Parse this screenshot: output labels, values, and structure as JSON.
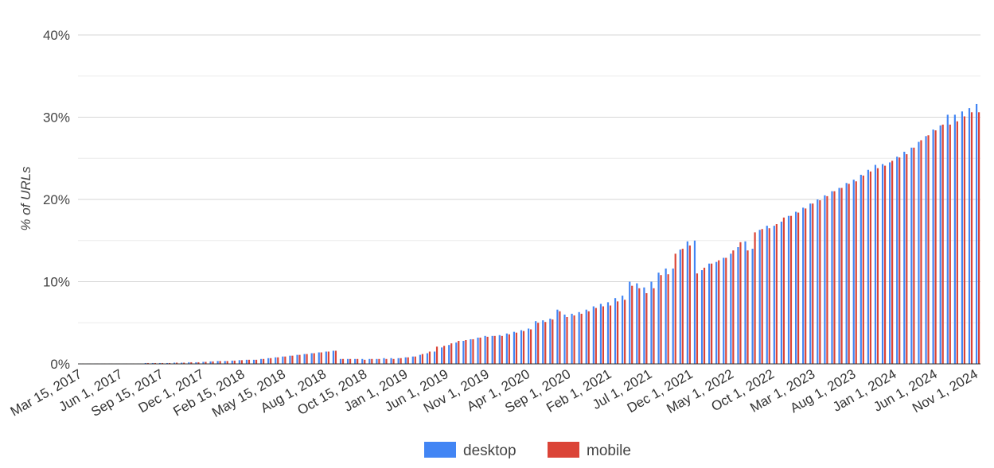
{
  "chart_data": {
    "type": "bar",
    "title": "",
    "xlabel": "",
    "ylabel": "% of URLs",
    "ylim": [
      0,
      40
    ],
    "y_ticks": [
      "0%",
      "10%",
      "20%",
      "30%",
      "40%"
    ],
    "grid": true,
    "legend_position": "bottom",
    "x_tick_labels": [
      "Mar 15, 2017",
      "Jun 1, 2017",
      "Sep 15, 2017",
      "Dec 1, 2017",
      "Feb 15, 2018",
      "May 15, 2018",
      "Aug 1, 2018",
      "Oct 15, 2018",
      "Jan 1, 2019",
      "Jun 1, 2019",
      "Nov 1, 2019",
      "Apr 1, 2020",
      "Sep 1, 2020",
      "Feb 1, 2021",
      "Jul 1, 2021",
      "Dec 1, 2021",
      "May 1, 2022",
      "Oct 1, 2022",
      "Mar 1, 2023",
      "Aug 1, 2023",
      "Jan 1, 2024",
      "Jun 1, 2024",
      "Nov 1, 2024"
    ],
    "series": [
      {
        "name": "desktop",
        "color": "#4285f4",
        "values": [
          0.05,
          0.05,
          0.05,
          0.05,
          0.05,
          0.05,
          0.05,
          0.05,
          0.05,
          0.1,
          0.1,
          0.1,
          0.1,
          0.15,
          0.15,
          0.2,
          0.2,
          0.25,
          0.3,
          0.35,
          0.35,
          0.4,
          0.45,
          0.5,
          0.5,
          0.6,
          0.7,
          0.8,
          0.9,
          1.0,
          1.1,
          1.2,
          1.3,
          1.4,
          1.5,
          1.6,
          0.6,
          0.6,
          0.6,
          0.6,
          0.6,
          0.6,
          0.7,
          0.7,
          0.7,
          0.8,
          0.9,
          1.1,
          1.3,
          1.5,
          2.0,
          2.3,
          2.6,
          2.8,
          3.0,
          3.2,
          3.4,
          3.4,
          3.5,
          3.7,
          3.9,
          4.1,
          4.3,
          5.2,
          5.3,
          5.5,
          6.6,
          6.0,
          6.1,
          6.3,
          6.6,
          7.0,
          7.3,
          7.5,
          8.0,
          8.3,
          10.0,
          9.8,
          9.3,
          10.0,
          11.1,
          11.6,
          11.6,
          13.9,
          14.9,
          15.0,
          11.4,
          12.2,
          12.4,
          12.9,
          13.4,
          14.2,
          14.9,
          14.0,
          16.3,
          16.8,
          16.8,
          17.3,
          18.0,
          18.5,
          19.0,
          19.5,
          20.0,
          20.5,
          21.0,
          21.4,
          22.0,
          22.4,
          23.0,
          23.6,
          24.2,
          24.3,
          24.5,
          25.2,
          25.8,
          26.3,
          27.0,
          27.7,
          28.5,
          29.0,
          30.3,
          30.3,
          30.7,
          31.1,
          31.6
        ]
      },
      {
        "name": "mobile",
        "color": "#db4437",
        "values": [
          0.05,
          0.05,
          0.05,
          0.05,
          0.05,
          0.05,
          0.05,
          0.05,
          0.05,
          0.1,
          0.1,
          0.1,
          0.1,
          0.15,
          0.15,
          0.2,
          0.2,
          0.25,
          0.3,
          0.35,
          0.35,
          0.4,
          0.45,
          0.5,
          0.5,
          0.6,
          0.7,
          0.8,
          0.9,
          1.0,
          1.1,
          1.2,
          1.3,
          1.4,
          1.5,
          1.6,
          0.6,
          0.6,
          0.6,
          0.5,
          0.6,
          0.6,
          0.6,
          0.6,
          0.7,
          0.8,
          0.9,
          1.2,
          1.5,
          2.1,
          2.2,
          2.5,
          2.8,
          2.9,
          3.0,
          3.2,
          3.3,
          3.4,
          3.4,
          3.6,
          3.8,
          4.0,
          4.2,
          5.0,
          5.1,
          5.4,
          6.4,
          5.7,
          5.9,
          6.1,
          6.4,
          6.8,
          7.0,
          7.1,
          7.6,
          7.8,
          9.5,
          9.2,
          8.6,
          9.2,
          10.8,
          10.9,
          13.4,
          14.0,
          14.4,
          11.0,
          11.7,
          12.2,
          12.6,
          12.9,
          13.8,
          14.8,
          13.8,
          16.0,
          16.4,
          16.5,
          17.0,
          17.8,
          18.0,
          18.4,
          18.9,
          19.5,
          19.9,
          20.4,
          21.0,
          21.4,
          21.9,
          22.2,
          22.9,
          23.4,
          23.8,
          24.1,
          24.7,
          25.1,
          25.5,
          26.3,
          27.2,
          27.8,
          28.4,
          29.1,
          29.1,
          29.5,
          30.1,
          30.6,
          30.6
        ]
      }
    ]
  }
}
